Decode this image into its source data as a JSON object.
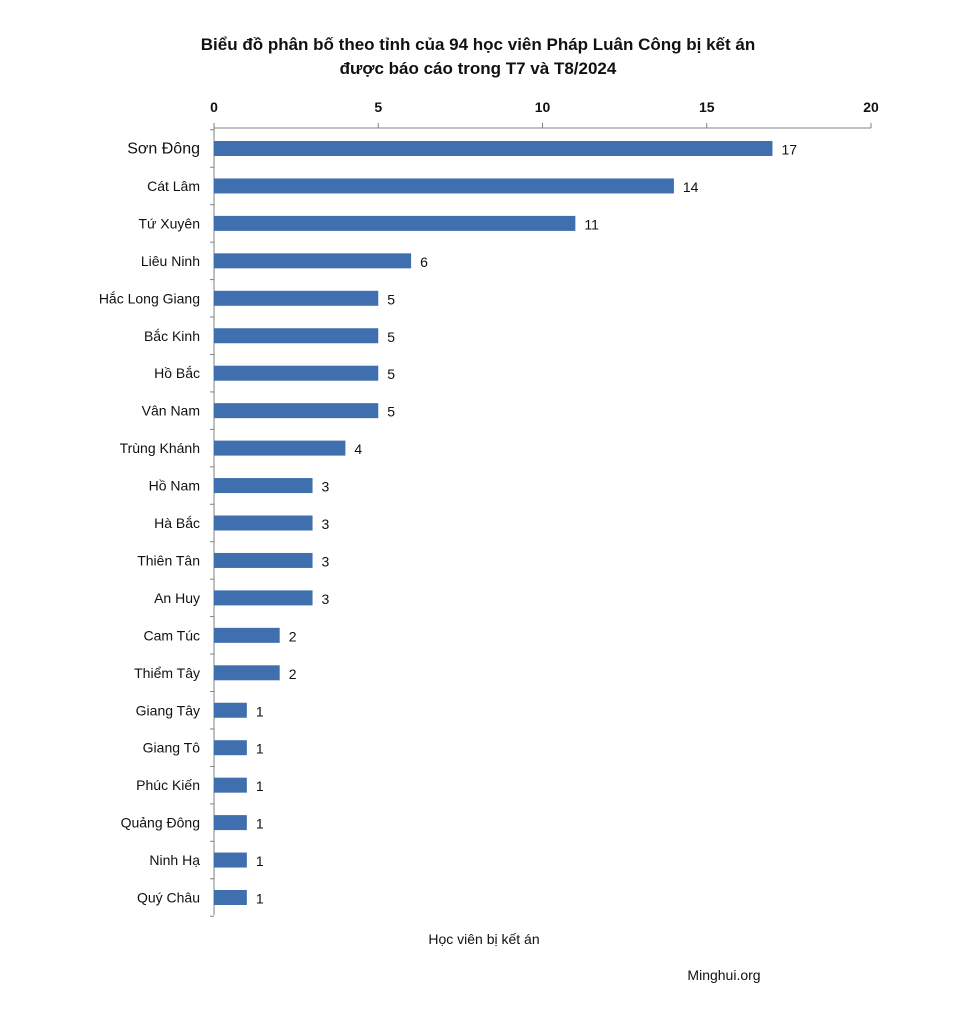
{
  "chart_data": {
    "type": "bar",
    "orientation": "horizontal",
    "title": "Biểu đồ phân bố theo tỉnh của 94 học viên Pháp Luân Công bị kết án",
    "subtitle": "được báo cáo trong T7 và T8/2024",
    "xlabel": "Học viên bị kết án",
    "ylabel": "",
    "xlim": [
      0,
      20
    ],
    "xticks": [
      0,
      5,
      10,
      15,
      20
    ],
    "xtick_labels": [
      "0",
      "5",
      "10",
      "15",
      "20"
    ],
    "axis_position": "top",
    "grid": false,
    "bar_color": "#3f6fae",
    "categories": [
      "Sơn Đông",
      "Cát Lâm",
      "Tứ Xuyên",
      "Liêu Ninh",
      "Hắc Long Giang",
      "Bắc Kinh",
      "Hồ Bắc",
      "Vân Nam",
      "Trùng Khánh",
      "Hồ Nam",
      "Hà Bắc",
      "Thiên Tân",
      "An Huy",
      "Cam Túc",
      "Thiểm Tây",
      "Giang Tây",
      "Giang Tô",
      "Phúc Kiến",
      "Quảng Đông",
      "Ninh Hạ",
      "Quý Châu"
    ],
    "values": [
      17,
      14,
      11,
      6,
      5,
      5,
      5,
      5,
      4,
      3,
      3,
      3,
      3,
      2,
      2,
      1,
      1,
      1,
      1,
      1,
      1
    ],
    "value_labels": [
      "17",
      "14",
      "11",
      "6",
      "5",
      "5",
      "5",
      "5",
      "4",
      "3",
      "3",
      "3",
      "3",
      "2",
      "2",
      "1",
      "1",
      "1",
      "1",
      "1",
      "1"
    ]
  },
  "source": "Minghui.org"
}
